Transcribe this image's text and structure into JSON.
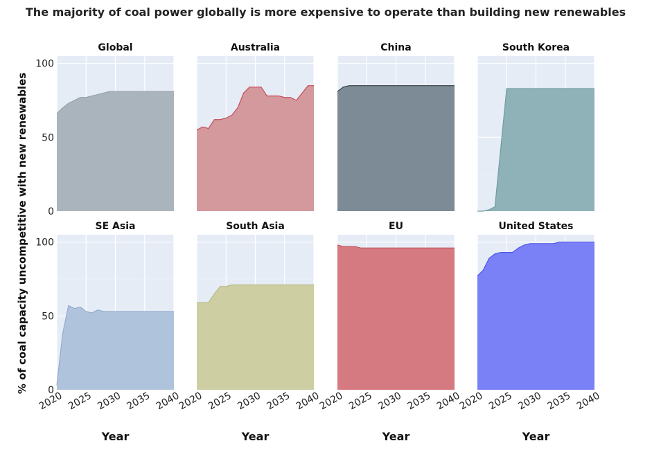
{
  "title": "The majority of coal power globally is more expensive to operate than building new renewables",
  "ylabel": "% of coal capacity uncompetitive with new renewables",
  "xlabel": "Year",
  "chart_data": {
    "type": "area",
    "title": "The majority of coal power globally is more expensive to operate than building new renewables",
    "ylabel": "% of coal capacity uncompetitive with new renewables",
    "xlabel": "Year",
    "xlim": [
      2020,
      2040
    ],
    "ylim": [
      0,
      105
    ],
    "x_ticks": [
      2020,
      2025,
      2030,
      2035,
      2040
    ],
    "y_ticks": [
      0,
      50,
      100
    ],
    "grid": true,
    "background": "#e5ecf6",
    "layout": "2x4 small multiples, shared axes",
    "panels": [
      {
        "name": "Global",
        "color": "#aab4bc",
        "line": "#97a0a8",
        "x": [
          2020,
          2021,
          2022,
          2023,
          2024,
          2025,
          2026,
          2027,
          2028,
          2029,
          2030,
          2035,
          2040
        ],
        "y": [
          66,
          70,
          73,
          75,
          77,
          77,
          78,
          79,
          80,
          81,
          81,
          81,
          81
        ]
      },
      {
        "name": "Australia",
        "color": "#d4999c",
        "line": "#c64c5a",
        "x": [
          2020,
          2021,
          2022,
          2023,
          2024,
          2025,
          2026,
          2027,
          2028,
          2029,
          2030,
          2031,
          2032,
          2033,
          2034,
          2035,
          2036,
          2037,
          2038,
          2039,
          2040
        ],
        "y": [
          55,
          57,
          56,
          62,
          62,
          63,
          65,
          70,
          80,
          84,
          84,
          84,
          78,
          78,
          78,
          77,
          77,
          75,
          80,
          85,
          85
        ]
      },
      {
        "name": "China",
        "color": "#7c8b96",
        "line": "#333a40",
        "x": [
          2020,
          2021,
          2022,
          2025,
          2030,
          2035,
          2040
        ],
        "y": [
          81,
          84,
          85,
          85,
          85,
          85,
          85
        ]
      },
      {
        "name": "South Korea",
        "color": "#8eb2b8",
        "line": "#6f9ca2",
        "x": [
          2020,
          2021,
          2022,
          2023,
          2025,
          2030,
          2035,
          2040
        ],
        "y": [
          0,
          0,
          1,
          3,
          83,
          83,
          83,
          83
        ]
      },
      {
        "name": "SE Asia",
        "color": "#b0c3dc",
        "line": "#93abcb",
        "x": [
          2020,
          2021,
          2022,
          2023,
          2024,
          2025,
          2026,
          2027,
          2028,
          2030,
          2031,
          2035,
          2040
        ],
        "y": [
          3,
          38,
          57,
          55,
          56,
          53,
          52,
          54,
          53,
          53,
          53,
          53,
          53
        ]
      },
      {
        "name": "South Asia",
        "color": "#cdcfa2",
        "line": "#b8ba86",
        "x": [
          2020,
          2021,
          2022,
          2023,
          2024,
          2025,
          2026,
          2027,
          2028,
          2029,
          2030,
          2035,
          2040
        ],
        "y": [
          59,
          59,
          59,
          65,
          70,
          70,
          71,
          71,
          71,
          71,
          71,
          71,
          71
        ]
      },
      {
        "name": "EU",
        "color": "#d57a80",
        "line": "#c2545c",
        "x": [
          2020,
          2021,
          2022,
          2023,
          2024,
          2025,
          2026,
          2027,
          2028,
          2030,
          2035,
          2040
        ],
        "y": [
          98,
          97,
          97,
          97,
          96,
          96,
          96,
          96,
          96,
          96,
          96,
          96
        ]
      },
      {
        "name": "United States",
        "color": "#7a80f6",
        "line": "#4d55ea",
        "x": [
          2020,
          2021,
          2022,
          2023,
          2024,
          2025,
          2026,
          2027,
          2028,
          2029,
          2030,
          2033,
          2034,
          2035,
          2040
        ],
        "y": [
          77,
          81,
          89,
          92,
          93,
          93,
          93,
          96,
          98,
          99,
          99,
          99,
          100,
          100,
          100
        ]
      }
    ]
  }
}
